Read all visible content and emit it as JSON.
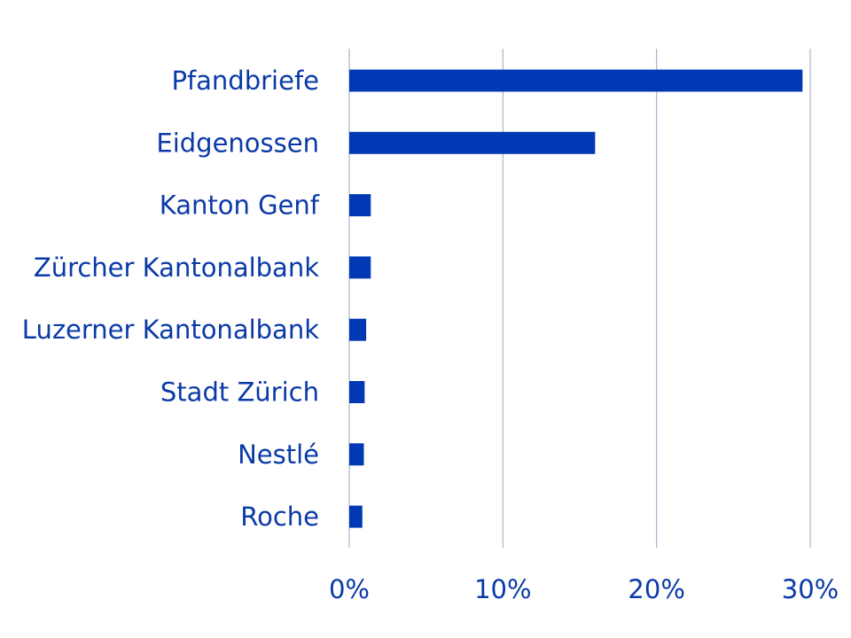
{
  "colors": {
    "bar": "#0039b3",
    "text": "#0a3aa8",
    "grid": "#a9b4cc",
    "background": "#ffffff"
  },
  "chart_data": {
    "type": "bar",
    "orientation": "horizontal",
    "title": "",
    "xlabel": "",
    "ylabel": "",
    "xlim": [
      0,
      30
    ],
    "x_ticks": [
      0,
      10,
      20,
      30
    ],
    "x_tick_labels": [
      "0%",
      "10%",
      "20%",
      "30%"
    ],
    "grid": true,
    "legend": "none",
    "categories": [
      "Pfandbriefe",
      "Eidgenossen",
      "Kanton Genf",
      "Zürcher Kantonalbank",
      "Luzerner Kantonalbank",
      "Stadt Zürich",
      "Nestlé",
      "Roche"
    ],
    "values": [
      29.5,
      16.0,
      1.4,
      1.4,
      1.1,
      1.0,
      0.95,
      0.85
    ]
  }
}
